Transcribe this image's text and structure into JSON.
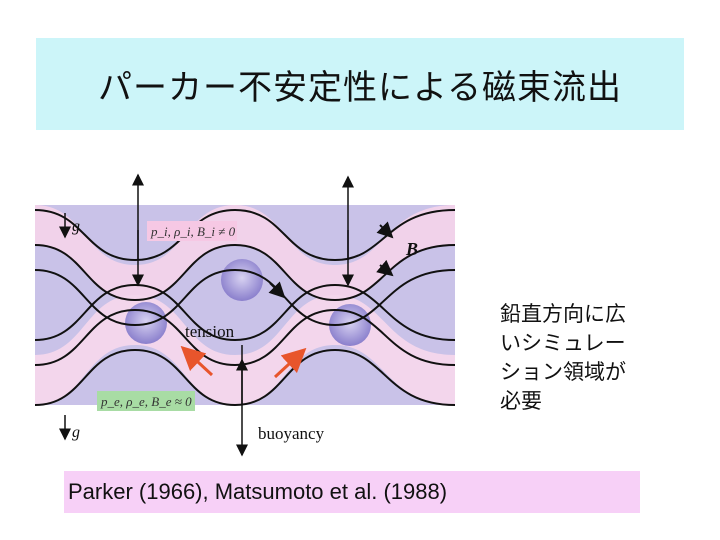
{
  "title": "パーカー不安定性による磁束流出",
  "figure": {
    "g_top": "g",
    "g_bottom": "g",
    "label_inside": "p_i, ρ_i, B_i ≠ 0",
    "label_outside": "p_e, ρ_e, B_e ≈ 0",
    "B": "B",
    "tension": "tension",
    "buoyancy": "buoyancy",
    "colors": {
      "band_purple": "#c6bfe6",
      "band_pink": "#f3d5ea",
      "arrow_orange": "#e8552c",
      "label_pink": "#f6c8e4",
      "label_green": "#a8dca4"
    }
  },
  "side_note_lines": [
    "鉛直方向に広",
    "いシミュレー",
    "ション領域が",
    "必要"
  ],
  "citation": "Parker (1966), Matsumoto et al. (1988)"
}
